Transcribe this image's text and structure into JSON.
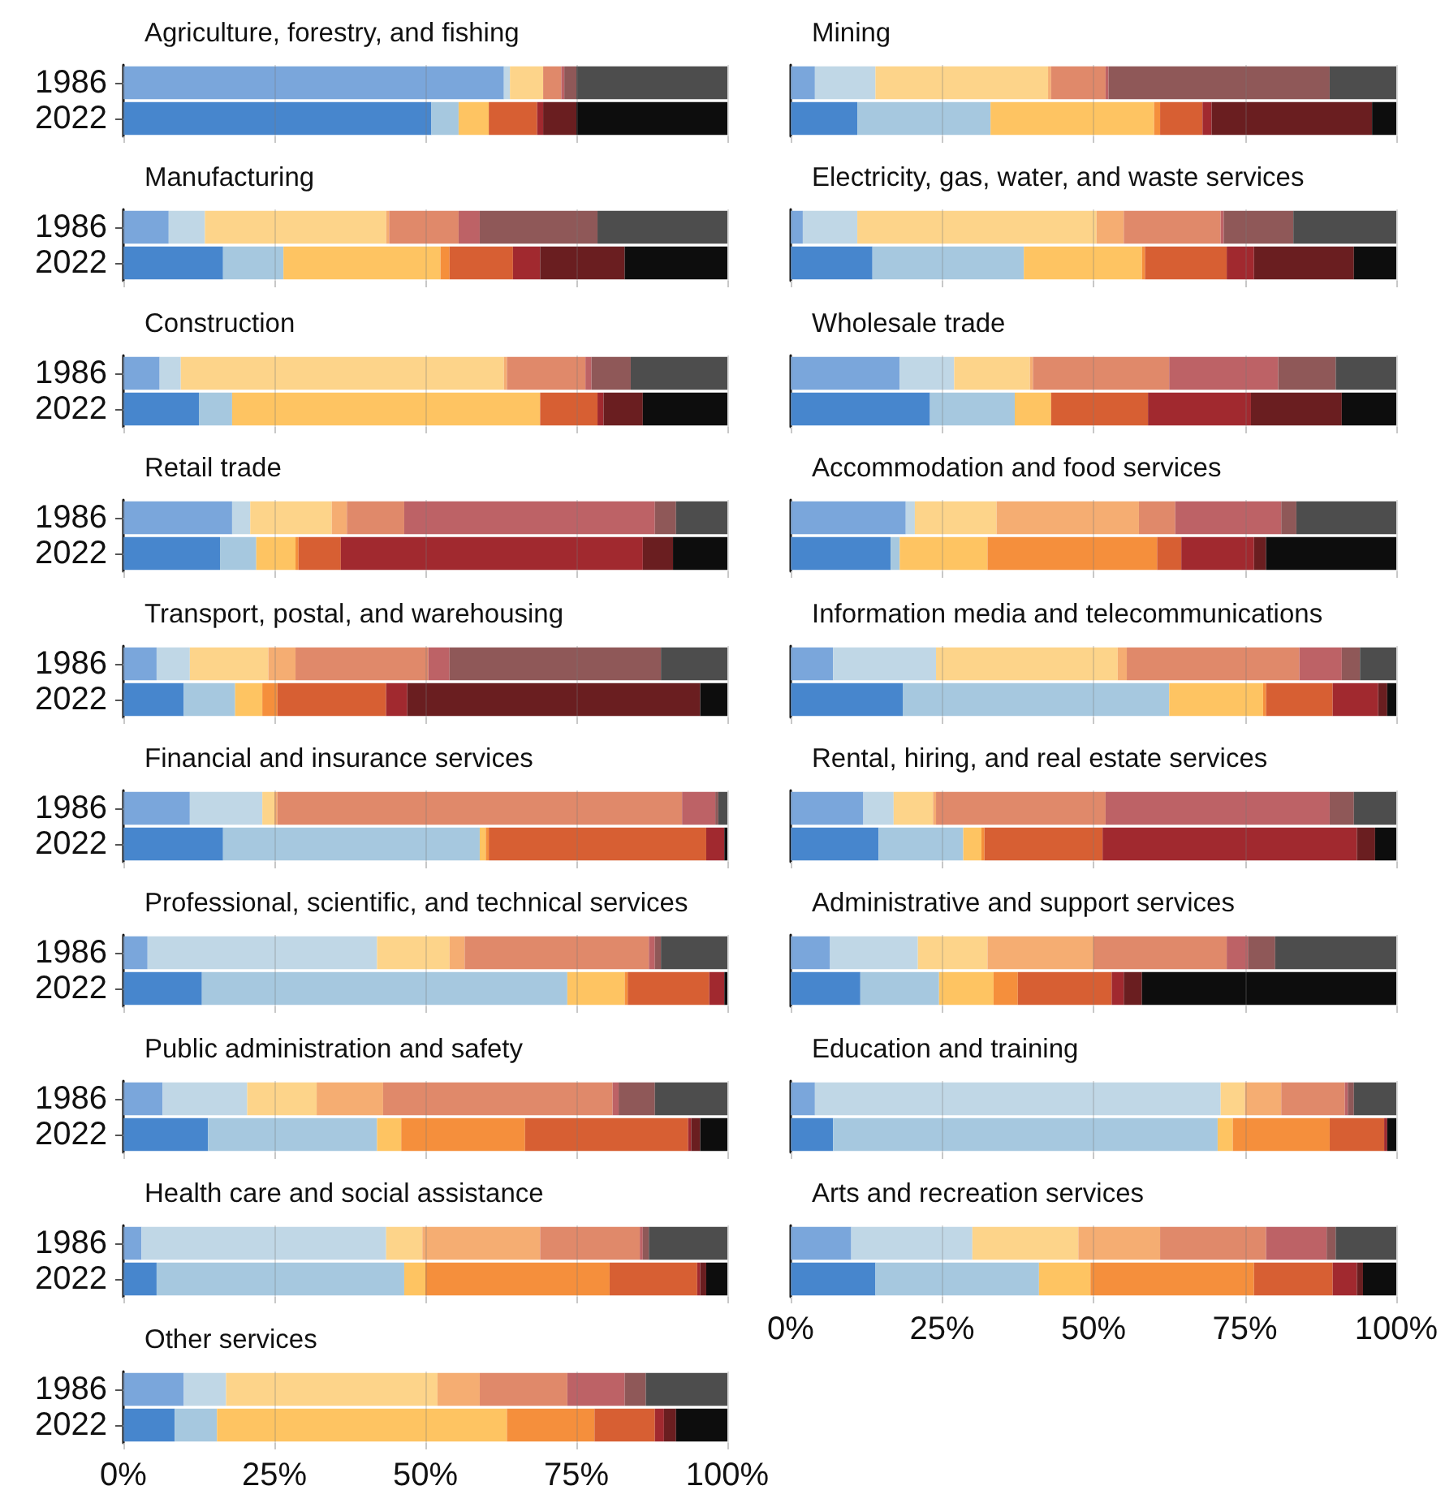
{
  "chart_data": [
    {
      "type": "bar",
      "title": "Agriculture, forestry, and fishing",
      "orientation": "horizontal",
      "stacked": true,
      "categories": [
        "1986",
        "2022"
      ],
      "xlim": [
        0,
        100
      ],
      "xticks": [
        0,
        25,
        50,
        75,
        100
      ],
      "grid": "x",
      "tick_labels": "y",
      "series": [
        {
          "colors": [
            "#7aa6db",
            "#4786cd"
          ],
          "values": [
            63,
            51
          ]
        },
        {
          "colors": [
            "#c0d7e6",
            "#a6c8df"
          ],
          "values": [
            1,
            4.5
          ]
        },
        {
          "colors": [
            "#fdd48a",
            "#fec462"
          ],
          "values": [
            5.5,
            5
          ]
        },
        {
          "colors": [
            "#f5ad72",
            "#f58f3c"
          ],
          "values": [
            0,
            0
          ]
        },
        {
          "colors": [
            "#e0896a",
            "#d75f33"
          ],
          "values": [
            3,
            8
          ]
        },
        {
          "colors": [
            "#bd6266",
            "#a1292f"
          ],
          "values": [
            0.5,
            1
          ]
        },
        {
          "colors": [
            "#8f5858",
            "#6a1e20"
          ],
          "values": [
            2,
            5.5
          ]
        },
        {
          "colors": [
            "#4d4d4d",
            "#0d0d0d"
          ],
          "values": [
            25,
            25
          ]
        }
      ]
    },
    {
      "type": "bar",
      "title": "Mining",
      "orientation": "horizontal",
      "stacked": true,
      "categories": [
        "1986",
        "2022"
      ],
      "xlim": [
        0,
        100
      ],
      "xticks": [
        0,
        25,
        50,
        75,
        100
      ],
      "grid": "x",
      "tick_labels": false,
      "series": [
        {
          "colors": [
            "#7aa6db",
            "#4786cd"
          ],
          "values": [
            4,
            11
          ]
        },
        {
          "colors": [
            "#c0d7e6",
            "#a6c8df"
          ],
          "values": [
            10,
            22
          ]
        },
        {
          "colors": [
            "#fdd48a",
            "#fec462"
          ],
          "values": [
            28.5,
            27
          ]
        },
        {
          "colors": [
            "#f5ad72",
            "#f58f3c"
          ],
          "values": [
            0.5,
            1
          ]
        },
        {
          "colors": [
            "#e0896a",
            "#d75f33"
          ],
          "values": [
            9,
            7
          ]
        },
        {
          "colors": [
            "#bd6266",
            "#a1292f"
          ],
          "values": [
            0.5,
            1.5
          ]
        },
        {
          "colors": [
            "#8f5858",
            "#6a1e20"
          ],
          "values": [
            36.5,
            26.5
          ]
        },
        {
          "colors": [
            "#4d4d4d",
            "#0d0d0d"
          ],
          "values": [
            11,
            4
          ]
        }
      ]
    },
    {
      "type": "bar",
      "title": "Manufacturing",
      "orientation": "horizontal",
      "stacked": true,
      "categories": [
        "1986",
        "2022"
      ],
      "xlim": [
        0,
        100
      ],
      "xticks": [
        0,
        25,
        50,
        75,
        100
      ],
      "grid": "x",
      "tick_labels": "y",
      "series": [
        {
          "colors": [
            "#7aa6db",
            "#4786cd"
          ],
          "values": [
            7.5,
            16.5
          ]
        },
        {
          "colors": [
            "#c0d7e6",
            "#a6c8df"
          ],
          "values": [
            6,
            10
          ]
        },
        {
          "colors": [
            "#fdd48a",
            "#fec462"
          ],
          "values": [
            30,
            26
          ]
        },
        {
          "colors": [
            "#f5ad72",
            "#f58f3c"
          ],
          "values": [
            0.5,
            1.5
          ]
        },
        {
          "colors": [
            "#e0896a",
            "#d75f33"
          ],
          "values": [
            11.5,
            10.5
          ]
        },
        {
          "colors": [
            "#bd6266",
            "#a1292f"
          ],
          "values": [
            3.5,
            4.5
          ]
        },
        {
          "colors": [
            "#8f5858",
            "#6a1e20"
          ],
          "values": [
            19.5,
            14
          ]
        },
        {
          "colors": [
            "#4d4d4d",
            "#0d0d0d"
          ],
          "values": [
            21.5,
            17
          ]
        }
      ]
    },
    {
      "type": "bar",
      "title": "Electricity, gas, water, and waste services",
      "orientation": "horizontal",
      "stacked": true,
      "categories": [
        "1986",
        "2022"
      ],
      "xlim": [
        0,
        100
      ],
      "xticks": [
        0,
        25,
        50,
        75,
        100
      ],
      "grid": "x",
      "tick_labels": false,
      "series": [
        {
          "colors": [
            "#7aa6db",
            "#4786cd"
          ],
          "values": [
            2,
            13.5
          ]
        },
        {
          "colors": [
            "#c0d7e6",
            "#a6c8df"
          ],
          "values": [
            9,
            25
          ]
        },
        {
          "colors": [
            "#fdd48a",
            "#fec462"
          ],
          "values": [
            39.5,
            19.5
          ]
        },
        {
          "colors": [
            "#f5ad72",
            "#f58f3c"
          ],
          "values": [
            4.5,
            0.5
          ]
        },
        {
          "colors": [
            "#e0896a",
            "#d75f33"
          ],
          "values": [
            16,
            13.5
          ]
        },
        {
          "colors": [
            "#bd6266",
            "#a1292f"
          ],
          "values": [
            0.5,
            4.5
          ]
        },
        {
          "colors": [
            "#8f5858",
            "#6a1e20"
          ],
          "values": [
            11.5,
            16.5
          ]
        },
        {
          "colors": [
            "#4d4d4d",
            "#0d0d0d"
          ],
          "values": [
            17,
            7
          ]
        }
      ]
    },
    {
      "type": "bar",
      "title": "Construction",
      "orientation": "horizontal",
      "stacked": true,
      "categories": [
        "1986",
        "2022"
      ],
      "xlim": [
        0,
        100
      ],
      "xticks": [
        0,
        25,
        50,
        75,
        100
      ],
      "grid": "x",
      "tick_labels": "y",
      "series": [
        {
          "colors": [
            "#7aa6db",
            "#4786cd"
          ],
          "values": [
            6,
            12.5
          ]
        },
        {
          "colors": [
            "#c0d7e6",
            "#a6c8df"
          ],
          "values": [
            3.5,
            5.5
          ]
        },
        {
          "colors": [
            "#fdd48a",
            "#fec462"
          ],
          "values": [
            53.5,
            51
          ]
        },
        {
          "colors": [
            "#f5ad72",
            "#f58f3c"
          ],
          "values": [
            0.5,
            0
          ]
        },
        {
          "colors": [
            "#e0896a",
            "#d75f33"
          ],
          "values": [
            13,
            9.5
          ]
        },
        {
          "colors": [
            "#bd6266",
            "#a1292f"
          ],
          "values": [
            1,
            1
          ]
        },
        {
          "colors": [
            "#8f5858",
            "#6a1e20"
          ],
          "values": [
            6.5,
            6.5
          ]
        },
        {
          "colors": [
            "#4d4d4d",
            "#0d0d0d"
          ],
          "values": [
            16,
            14
          ]
        }
      ]
    },
    {
      "type": "bar",
      "title": "Wholesale trade",
      "orientation": "horizontal",
      "stacked": true,
      "categories": [
        "1986",
        "2022"
      ],
      "xlim": [
        0,
        100
      ],
      "xticks": [
        0,
        25,
        50,
        75,
        100
      ],
      "grid": "x",
      "tick_labels": false,
      "series": [
        {
          "colors": [
            "#7aa6db",
            "#4786cd"
          ],
          "values": [
            18,
            23
          ]
        },
        {
          "colors": [
            "#c0d7e6",
            "#a6c8df"
          ],
          "values": [
            9,
            14
          ]
        },
        {
          "colors": [
            "#fdd48a",
            "#fec462"
          ],
          "values": [
            12.5,
            6
          ]
        },
        {
          "colors": [
            "#f5ad72",
            "#f58f3c"
          ],
          "values": [
            0.5,
            0
          ]
        },
        {
          "colors": [
            "#e0896a",
            "#d75f33"
          ],
          "values": [
            22.5,
            16
          ]
        },
        {
          "colors": [
            "#bd6266",
            "#a1292f"
          ],
          "values": [
            18,
            17
          ]
        },
        {
          "colors": [
            "#8f5858",
            "#6a1e20"
          ],
          "values": [
            9.5,
            15
          ]
        },
        {
          "colors": [
            "#4d4d4d",
            "#0d0d0d"
          ],
          "values": [
            10,
            9
          ]
        }
      ]
    },
    {
      "type": "bar",
      "title": "Retail trade",
      "orientation": "horizontal",
      "stacked": true,
      "categories": [
        "1986",
        "2022"
      ],
      "xlim": [
        0,
        100
      ],
      "xticks": [
        0,
        25,
        50,
        75,
        100
      ],
      "grid": "x",
      "tick_labels": "y",
      "series": [
        {
          "colors": [
            "#7aa6db",
            "#4786cd"
          ],
          "values": [
            18,
            16
          ]
        },
        {
          "colors": [
            "#c0d7e6",
            "#a6c8df"
          ],
          "values": [
            3,
            6
          ]
        },
        {
          "colors": [
            "#fdd48a",
            "#fec462"
          ],
          "values": [
            13.5,
            6.5
          ]
        },
        {
          "colors": [
            "#f5ad72",
            "#f58f3c"
          ],
          "values": [
            2.5,
            0.5
          ]
        },
        {
          "colors": [
            "#e0896a",
            "#d75f33"
          ],
          "values": [
            9.5,
            7
          ]
        },
        {
          "colors": [
            "#bd6266",
            "#a1292f"
          ],
          "values": [
            41.5,
            50
          ]
        },
        {
          "colors": [
            "#8f5858",
            "#6a1e20"
          ],
          "values": [
            3.5,
            5
          ]
        },
        {
          "colors": [
            "#4d4d4d",
            "#0d0d0d"
          ],
          "values": [
            8.5,
            9
          ]
        }
      ]
    },
    {
      "type": "bar",
      "title": "Accommodation and food services",
      "orientation": "horizontal",
      "stacked": true,
      "categories": [
        "1986",
        "2022"
      ],
      "xlim": [
        0,
        100
      ],
      "xticks": [
        0,
        25,
        50,
        75,
        100
      ],
      "grid": "x",
      "tick_labels": false,
      "series": [
        {
          "colors": [
            "#7aa6db",
            "#4786cd"
          ],
          "values": [
            19,
            16.5
          ]
        },
        {
          "colors": [
            "#c0d7e6",
            "#a6c8df"
          ],
          "values": [
            1.5,
            1.5
          ]
        },
        {
          "colors": [
            "#fdd48a",
            "#fec462"
          ],
          "values": [
            13.5,
            14.5
          ]
        },
        {
          "colors": [
            "#f5ad72",
            "#f58f3c"
          ],
          "values": [
            23.5,
            28
          ]
        },
        {
          "colors": [
            "#e0896a",
            "#d75f33"
          ],
          "values": [
            6,
            4
          ]
        },
        {
          "colors": [
            "#bd6266",
            "#a1292f"
          ],
          "values": [
            17.5,
            12
          ]
        },
        {
          "colors": [
            "#8f5858",
            "#6a1e20"
          ],
          "values": [
            2.5,
            2
          ]
        },
        {
          "colors": [
            "#4d4d4d",
            "#0d0d0d"
          ],
          "values": [
            16.5,
            21.5
          ]
        }
      ]
    },
    {
      "type": "bar",
      "title": "Transport, postal, and warehousing",
      "orientation": "horizontal",
      "stacked": true,
      "categories": [
        "1986",
        "2022"
      ],
      "xlim": [
        0,
        100
      ],
      "xticks": [
        0,
        25,
        50,
        75,
        100
      ],
      "grid": "x",
      "tick_labels": "y",
      "series": [
        {
          "colors": [
            "#7aa6db",
            "#4786cd"
          ],
          "values": [
            5.5,
            10
          ]
        },
        {
          "colors": [
            "#c0d7e6",
            "#a6c8df"
          ],
          "values": [
            5.5,
            8.5
          ]
        },
        {
          "colors": [
            "#fdd48a",
            "#fec462"
          ],
          "values": [
            13,
            4.5
          ]
        },
        {
          "colors": [
            "#f5ad72",
            "#f58f3c"
          ],
          "values": [
            4.5,
            2.5
          ]
        },
        {
          "colors": [
            "#e0896a",
            "#d75f33"
          ],
          "values": [
            22,
            18
          ]
        },
        {
          "colors": [
            "#bd6266",
            "#a1292f"
          ],
          "values": [
            3.5,
            3.5
          ]
        },
        {
          "colors": [
            "#8f5858",
            "#6a1e20"
          ],
          "values": [
            35,
            48.5
          ]
        },
        {
          "colors": [
            "#4d4d4d",
            "#0d0d0d"
          ],
          "values": [
            11,
            4.5
          ]
        }
      ]
    },
    {
      "type": "bar",
      "title": "Information media and telecommunications",
      "orientation": "horizontal",
      "stacked": true,
      "categories": [
        "1986",
        "2022"
      ],
      "xlim": [
        0,
        100
      ],
      "xticks": [
        0,
        25,
        50,
        75,
        100
      ],
      "grid": "x",
      "tick_labels": false,
      "series": [
        {
          "colors": [
            "#7aa6db",
            "#4786cd"
          ],
          "values": [
            7,
            18.5
          ]
        },
        {
          "colors": [
            "#c0d7e6",
            "#a6c8df"
          ],
          "values": [
            17,
            44
          ]
        },
        {
          "colors": [
            "#fdd48a",
            "#fec462"
          ],
          "values": [
            30,
            15.5
          ]
        },
        {
          "colors": [
            "#f5ad72",
            "#f58f3c"
          ],
          "values": [
            1.5,
            0.5
          ]
        },
        {
          "colors": [
            "#e0896a",
            "#d75f33"
          ],
          "values": [
            28.5,
            11
          ]
        },
        {
          "colors": [
            "#bd6266",
            "#a1292f"
          ],
          "values": [
            7,
            7.5
          ]
        },
        {
          "colors": [
            "#8f5858",
            "#6a1e20"
          ],
          "values": [
            3,
            1.5
          ]
        },
        {
          "colors": [
            "#4d4d4d",
            "#0d0d0d"
          ],
          "values": [
            6,
            1.5
          ]
        }
      ]
    },
    {
      "type": "bar",
      "title": "Financial and insurance services",
      "orientation": "horizontal",
      "stacked": true,
      "categories": [
        "1986",
        "2022"
      ],
      "xlim": [
        0,
        100
      ],
      "xticks": [
        0,
        25,
        50,
        75,
        100
      ],
      "grid": "x",
      "tick_labels": "y",
      "series": [
        {
          "colors": [
            "#7aa6db",
            "#4786cd"
          ],
          "values": [
            11,
            16.5
          ]
        },
        {
          "colors": [
            "#c0d7e6",
            "#a6c8df"
          ],
          "values": [
            12,
            42.5
          ]
        },
        {
          "colors": [
            "#fdd48a",
            "#fec462"
          ],
          "values": [
            2,
            1
          ]
        },
        {
          "colors": [
            "#f5ad72",
            "#f58f3c"
          ],
          "values": [
            0.5,
            0.5
          ]
        },
        {
          "colors": [
            "#e0896a",
            "#d75f33"
          ],
          "values": [
            67,
            36
          ]
        },
        {
          "colors": [
            "#bd6266",
            "#a1292f"
          ],
          "values": [
            5.5,
            3
          ]
        },
        {
          "colors": [
            "#8f5858",
            "#6a1e20"
          ],
          "values": [
            0.5,
            0
          ]
        },
        {
          "colors": [
            "#4d4d4d",
            "#0d0d0d"
          ],
          "values": [
            1.5,
            0.5
          ]
        }
      ]
    },
    {
      "type": "bar",
      "title": "Rental, hiring, and real estate services",
      "orientation": "horizontal",
      "stacked": true,
      "categories": [
        "1986",
        "2022"
      ],
      "xlim": [
        0,
        100
      ],
      "xticks": [
        0,
        25,
        50,
        75,
        100
      ],
      "grid": "x",
      "tick_labels": false,
      "series": [
        {
          "colors": [
            "#7aa6db",
            "#4786cd"
          ],
          "values": [
            12,
            14.5
          ]
        },
        {
          "colors": [
            "#c0d7e6",
            "#a6c8df"
          ],
          "values": [
            5,
            14
          ]
        },
        {
          "colors": [
            "#fdd48a",
            "#fec462"
          ],
          "values": [
            6.5,
            3
          ]
        },
        {
          "colors": [
            "#f5ad72",
            "#f58f3c"
          ],
          "values": [
            0.5,
            0.5
          ]
        },
        {
          "colors": [
            "#e0896a",
            "#d75f33"
          ],
          "values": [
            28,
            19.5
          ]
        },
        {
          "colors": [
            "#bd6266",
            "#a1292f"
          ],
          "values": [
            37,
            42
          ]
        },
        {
          "colors": [
            "#8f5858",
            "#6a1e20"
          ],
          "values": [
            4,
            3
          ]
        },
        {
          "colors": [
            "#4d4d4d",
            "#0d0d0d"
          ],
          "values": [
            7,
            3.5
          ]
        }
      ]
    },
    {
      "type": "bar",
      "title": "Professional, scientific, and technical services",
      "orientation": "horizontal",
      "stacked": true,
      "categories": [
        "1986",
        "2022"
      ],
      "xlim": [
        0,
        100
      ],
      "xticks": [
        0,
        25,
        50,
        75,
        100
      ],
      "grid": "x",
      "tick_labels": "y",
      "series": [
        {
          "colors": [
            "#7aa6db",
            "#4786cd"
          ],
          "values": [
            4,
            13
          ]
        },
        {
          "colors": [
            "#c0d7e6",
            "#a6c8df"
          ],
          "values": [
            38,
            60.5
          ]
        },
        {
          "colors": [
            "#fdd48a",
            "#fec462"
          ],
          "values": [
            12,
            9.5
          ]
        },
        {
          "colors": [
            "#f5ad72",
            "#f58f3c"
          ],
          "values": [
            2.5,
            0.5
          ]
        },
        {
          "colors": [
            "#e0896a",
            "#d75f33"
          ],
          "values": [
            30.5,
            13.5
          ]
        },
        {
          "colors": [
            "#bd6266",
            "#a1292f"
          ],
          "values": [
            1,
            2.5
          ]
        },
        {
          "colors": [
            "#8f5858",
            "#6a1e20"
          ],
          "values": [
            1,
            0
          ]
        },
        {
          "colors": [
            "#4d4d4d",
            "#0d0d0d"
          ],
          "values": [
            11,
            0.5
          ]
        }
      ]
    },
    {
      "type": "bar",
      "title": "Administrative and support services",
      "orientation": "horizontal",
      "stacked": true,
      "categories": [
        "1986",
        "2022"
      ],
      "xlim": [
        0,
        100
      ],
      "xticks": [
        0,
        25,
        50,
        75,
        100
      ],
      "grid": "x",
      "tick_labels": false,
      "series": [
        {
          "colors": [
            "#7aa6db",
            "#4786cd"
          ],
          "values": [
            6.5,
            11.5
          ]
        },
        {
          "colors": [
            "#c0d7e6",
            "#a6c8df"
          ],
          "values": [
            14.5,
            13
          ]
        },
        {
          "colors": [
            "#fdd48a",
            "#fec462"
          ],
          "values": [
            11.5,
            9
          ]
        },
        {
          "colors": [
            "#f5ad72",
            "#f58f3c"
          ],
          "values": [
            17.5,
            4
          ]
        },
        {
          "colors": [
            "#e0896a",
            "#d75f33"
          ],
          "values": [
            22,
            15.5
          ]
        },
        {
          "colors": [
            "#bd6266",
            "#a1292f"
          ],
          "values": [
            3.5,
            2
          ]
        },
        {
          "colors": [
            "#8f5858",
            "#6a1e20"
          ],
          "values": [
            4.5,
            3
          ]
        },
        {
          "colors": [
            "#4d4d4d",
            "#0d0d0d"
          ],
          "values": [
            20,
            42
          ]
        }
      ]
    },
    {
      "type": "bar",
      "title": "Public administration and safety",
      "orientation": "horizontal",
      "stacked": true,
      "categories": [
        "1986",
        "2022"
      ],
      "xlim": [
        0,
        100
      ],
      "xticks": [
        0,
        25,
        50,
        75,
        100
      ],
      "grid": "x",
      "tick_labels": "y",
      "series": [
        {
          "colors": [
            "#7aa6db",
            "#4786cd"
          ],
          "values": [
            6.5,
            14
          ]
        },
        {
          "colors": [
            "#c0d7e6",
            "#a6c8df"
          ],
          "values": [
            14,
            28
          ]
        },
        {
          "colors": [
            "#fdd48a",
            "#fec462"
          ],
          "values": [
            11.5,
            4
          ]
        },
        {
          "colors": [
            "#f5ad72",
            "#f58f3c"
          ],
          "values": [
            11,
            20.5
          ]
        },
        {
          "colors": [
            "#e0896a",
            "#d75f33"
          ],
          "values": [
            38,
            27
          ]
        },
        {
          "colors": [
            "#bd6266",
            "#a1292f"
          ],
          "values": [
            1,
            0.5
          ]
        },
        {
          "colors": [
            "#8f5858",
            "#6a1e20"
          ],
          "values": [
            6,
            1.5
          ]
        },
        {
          "colors": [
            "#4d4d4d",
            "#0d0d0d"
          ],
          "values": [
            12,
            4.5
          ]
        }
      ]
    },
    {
      "type": "bar",
      "title": "Education and training",
      "orientation": "horizontal",
      "stacked": true,
      "categories": [
        "1986",
        "2022"
      ],
      "xlim": [
        0,
        100
      ],
      "xticks": [
        0,
        25,
        50,
        75,
        100
      ],
      "grid": "x",
      "tick_labels": false,
      "series": [
        {
          "colors": [
            "#7aa6db",
            "#4786cd"
          ],
          "values": [
            4,
            7
          ]
        },
        {
          "colors": [
            "#c0d7e6",
            "#a6c8df"
          ],
          "values": [
            67,
            63.5
          ]
        },
        {
          "colors": [
            "#fdd48a",
            "#fec462"
          ],
          "values": [
            4,
            2.5
          ]
        },
        {
          "colors": [
            "#f5ad72",
            "#f58f3c"
          ],
          "values": [
            6,
            16
          ]
        },
        {
          "colors": [
            "#e0896a",
            "#d75f33"
          ],
          "values": [
            10.5,
            9
          ]
        },
        {
          "colors": [
            "#bd6266",
            "#a1292f"
          ],
          "values": [
            0.5,
            0.5
          ]
        },
        {
          "colors": [
            "#8f5858",
            "#6a1e20"
          ],
          "values": [
            1,
            0
          ]
        },
        {
          "colors": [
            "#4d4d4d",
            "#0d0d0d"
          ],
          "values": [
            7,
            1.5
          ]
        }
      ]
    },
    {
      "type": "bar",
      "title": "Health care and social assistance",
      "orientation": "horizontal",
      "stacked": true,
      "categories": [
        "1986",
        "2022"
      ],
      "xlim": [
        0,
        100
      ],
      "xticks": [
        0,
        25,
        50,
        75,
        100
      ],
      "grid": "x",
      "tick_labels": "y",
      "series": [
        {
          "colors": [
            "#7aa6db",
            "#4786cd"
          ],
          "values": [
            3,
            5.5
          ]
        },
        {
          "colors": [
            "#c0d7e6",
            "#a6c8df"
          ],
          "values": [
            40.5,
            41
          ]
        },
        {
          "colors": [
            "#fdd48a",
            "#fec462"
          ],
          "values": [
            6,
            3.5
          ]
        },
        {
          "colors": [
            "#f5ad72",
            "#f58f3c"
          ],
          "values": [
            19.5,
            30.5
          ]
        },
        {
          "colors": [
            "#e0896a",
            "#d75f33"
          ],
          "values": [
            16.5,
            14.5
          ]
        },
        {
          "colors": [
            "#bd6266",
            "#a1292f"
          ],
          "values": [
            0.5,
            0.5
          ]
        },
        {
          "colors": [
            "#8f5858",
            "#6a1e20"
          ],
          "values": [
            1,
            1
          ]
        },
        {
          "colors": [
            "#4d4d4d",
            "#0d0d0d"
          ],
          "values": [
            13,
            3.5
          ]
        }
      ]
    },
    {
      "type": "bar",
      "title": "Arts and recreation services",
      "orientation": "horizontal",
      "stacked": true,
      "categories": [
        "1986",
        "2022"
      ],
      "xlim": [
        0,
        100
      ],
      "xticks": [
        {
          "value": 0,
          "label": "0%"
        },
        {
          "value": 25,
          "label": "25%"
        },
        {
          "value": 50,
          "label": "50%"
        },
        {
          "value": 75,
          "label": "75%"
        },
        {
          "value": 100,
          "label": "100%"
        }
      ],
      "grid": "x",
      "tick_labels": "x",
      "series": [
        {
          "colors": [
            "#7aa6db",
            "#4786cd"
          ],
          "values": [
            10,
            14
          ]
        },
        {
          "colors": [
            "#c0d7e6",
            "#a6c8df"
          ],
          "values": [
            20,
            27
          ]
        },
        {
          "colors": [
            "#fdd48a",
            "#fec462"
          ],
          "values": [
            17.5,
            8.5
          ]
        },
        {
          "colors": [
            "#f5ad72",
            "#f58f3c"
          ],
          "values": [
            13.5,
            27
          ]
        },
        {
          "colors": [
            "#e0896a",
            "#d75f33"
          ],
          "values": [
            17.5,
            13
          ]
        },
        {
          "colors": [
            "#bd6266",
            "#a1292f"
          ],
          "values": [
            10,
            4
          ]
        },
        {
          "colors": [
            "#8f5858",
            "#6a1e20"
          ],
          "values": [
            1.5,
            1
          ]
        },
        {
          "colors": [
            "#4d4d4d",
            "#0d0d0d"
          ],
          "values": [
            10,
            5.5
          ]
        }
      ]
    },
    {
      "type": "bar",
      "title": "Other services",
      "orientation": "horizontal",
      "stacked": true,
      "categories": [
        "1986",
        "2022"
      ],
      "xlim": [
        0,
        100
      ],
      "xticks": [
        {
          "value": 0,
          "label": "0%"
        },
        {
          "value": 25,
          "label": "25%"
        },
        {
          "value": 50,
          "label": "50%"
        },
        {
          "value": 75,
          "label": "75%"
        },
        {
          "value": 100,
          "label": "100%"
        }
      ],
      "grid": "x",
      "series": [
        {
          "colors": [
            "#7aa6db",
            "#4786cd"
          ],
          "values": [
            10,
            8.5
          ]
        },
        {
          "colors": [
            "#c0d7e6",
            "#a6c8df"
          ],
          "values": [
            7,
            7
          ]
        },
        {
          "colors": [
            "#fdd48a",
            "#fec462"
          ],
          "values": [
            35,
            48
          ]
        },
        {
          "colors": [
            "#f5ad72",
            "#f58f3c"
          ],
          "values": [
            7,
            14.5
          ]
        },
        {
          "colors": [
            "#e0896a",
            "#d75f33"
          ],
          "values": [
            14.5,
            10
          ]
        },
        {
          "colors": [
            "#bd6266",
            "#a1292f"
          ],
          "values": [
            9.5,
            1.5
          ]
        },
        {
          "colors": [
            "#8f5858",
            "#6a1e20"
          ],
          "values": [
            3.5,
            2
          ]
        },
        {
          "colors": [
            "#4d4d4d",
            "#0d0d0d"
          ],
          "values": [
            13.5,
            8.5
          ]
        }
      ]
    }
  ]
}
